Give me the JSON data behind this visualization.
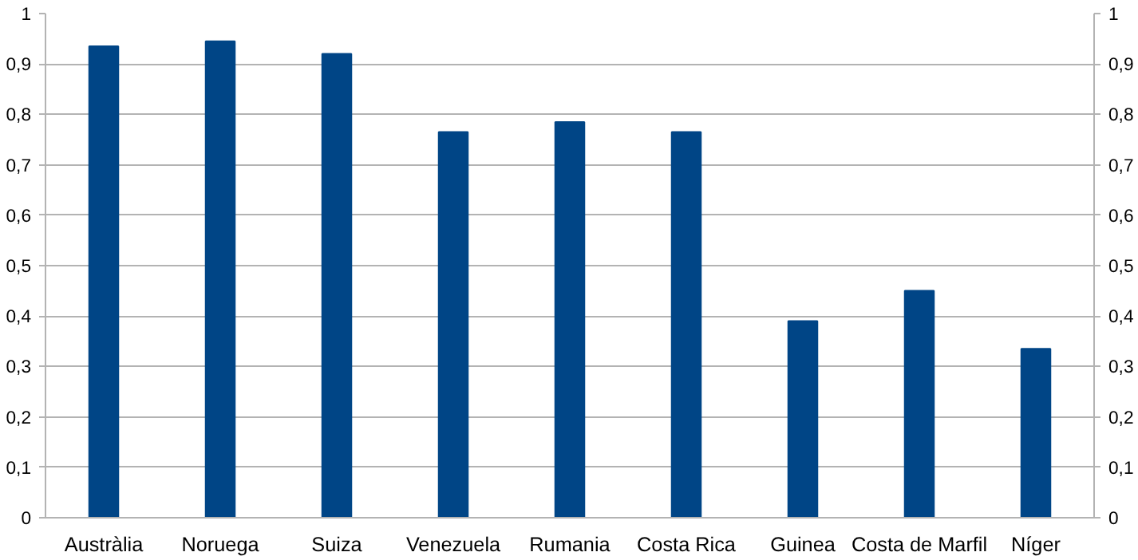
{
  "chart_data": {
    "type": "bar",
    "categories": [
      "Austràlia",
      "Noruega",
      "Suiza",
      "Venezuela",
      "Rumania",
      "Costa Rica",
      "Guinea",
      "Costa de Marfil",
      "Níger"
    ],
    "values": [
      0.935,
      0.945,
      0.92,
      0.765,
      0.785,
      0.765,
      0.39,
      0.45,
      0.335
    ],
    "color": "#004586",
    "ylim": [
      0,
      1
    ],
    "yticks": [
      0,
      {
        "value": 0.1,
        "label": "0,1"
      },
      {
        "value": 0.2,
        "label": "0,2"
      },
      {
        "value": 0.3,
        "label": "0,3"
      },
      {
        "value": 0.4,
        "label": "0,4"
      },
      {
        "value": 0.5,
        "label": "0,5"
      },
      {
        "value": 0.6,
        "label": "0,6"
      },
      {
        "value": 0.7,
        "label": "0,7"
      },
      {
        "value": 0.8,
        "label": "0,8"
      },
      {
        "value": 0.9,
        "label": "0,9"
      },
      1
    ],
    "y2lim": [
      0,
      1
    ],
    "y2ticks": [
      0,
      {
        "value": 0.1,
        "label": "0,1"
      },
      {
        "value": 0.2,
        "label": "0,2"
      },
      {
        "value": 0.3,
        "label": "0,3"
      },
      {
        "value": 0.4,
        "label": "0,4"
      },
      {
        "value": 0.5,
        "label": "0,5"
      },
      {
        "value": 0.6,
        "label": "0,6"
      },
      {
        "value": 0.7,
        "label": "0,7"
      },
      {
        "value": 0.8,
        "label": "0,8"
      },
      {
        "value": 0.9,
        "label": "0,9"
      },
      1
    ],
    "grid": "y"
  }
}
